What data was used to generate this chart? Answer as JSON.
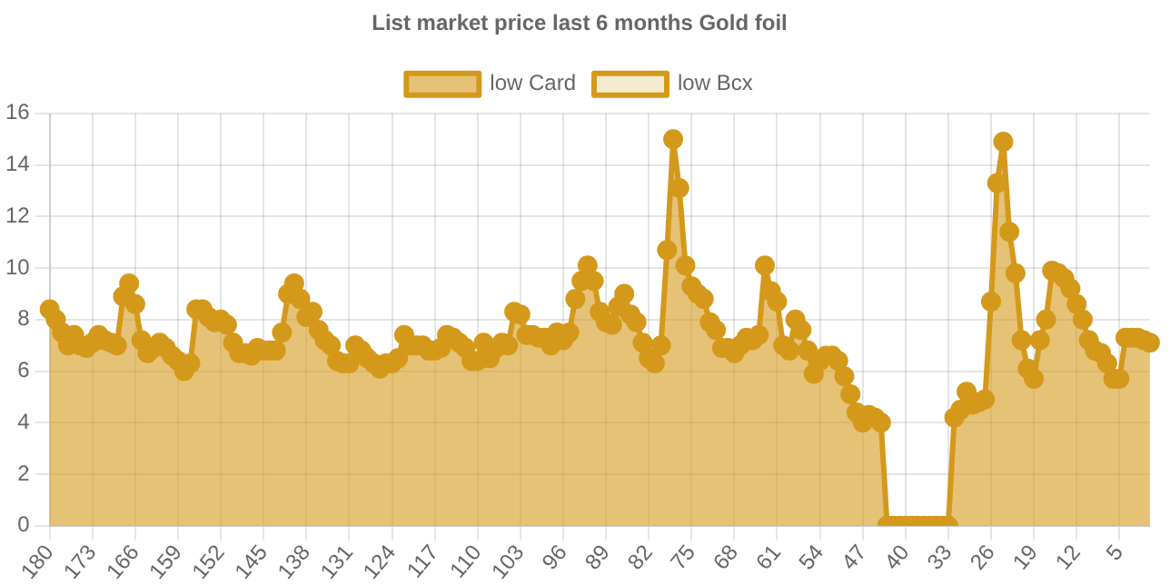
{
  "chart_data": {
    "type": "area",
    "title": "List market price last 6 months Gold foil",
    "categories": [
      "180",
      null,
      null,
      null,
      null,
      null,
      null,
      "173",
      null,
      null,
      null,
      null,
      null,
      null,
      "166",
      null,
      null,
      null,
      null,
      null,
      null,
      "159",
      null,
      null,
      null,
      null,
      null,
      null,
      "152",
      null,
      null,
      null,
      null,
      null,
      null,
      "145",
      null,
      null,
      null,
      null,
      null,
      null,
      "138",
      null,
      null,
      null,
      null,
      null,
      null,
      "131",
      null,
      null,
      null,
      null,
      null,
      null,
      "124",
      null,
      null,
      null,
      null,
      null,
      null,
      "117",
      null,
      null,
      null,
      null,
      null,
      null,
      "110",
      null,
      null,
      null,
      null,
      null,
      null,
      "103",
      null,
      null,
      null,
      null,
      null,
      null,
      "96",
      null,
      null,
      null,
      null,
      null,
      null,
      "89",
      null,
      null,
      null,
      null,
      null,
      null,
      "82",
      null,
      null,
      null,
      null,
      null,
      null,
      "75",
      null,
      null,
      null,
      null,
      null,
      null,
      "68",
      null,
      null,
      null,
      null,
      null,
      null,
      "61",
      null,
      null,
      null,
      null,
      null,
      null,
      "54",
      null,
      null,
      null,
      null,
      null,
      null,
      "47",
      null,
      null,
      null,
      null,
      null,
      null,
      "40",
      null,
      null,
      null,
      null,
      null,
      null,
      "33",
      null,
      null,
      null,
      null,
      null,
      null,
      "26",
      null,
      null,
      null,
      null,
      null,
      null,
      "19",
      null,
      null,
      null,
      null,
      null,
      null,
      "12",
      null,
      null,
      null,
      null,
      null,
      null,
      "5",
      null,
      null,
      null,
      null,
      null
    ],
    "series": [
      {
        "name": "low Card",
        "color": "#d4991a",
        "values": [
          8.4,
          8.0,
          7.5,
          7.0,
          7.4,
          7.0,
          6.9,
          7.1,
          7.4,
          7.2,
          7.1,
          7.0,
          8.9,
          9.4,
          8.6,
          7.2,
          6.7,
          6.9,
          7.1,
          6.9,
          6.6,
          6.4,
          6.0,
          6.3,
          8.4,
          8.4,
          8.1,
          7.9,
          8.0,
          7.8,
          7.1,
          6.7,
          6.7,
          6.6,
          6.9,
          6.8,
          6.8,
          6.8,
          7.5,
          9.0,
          9.4,
          8.8,
          8.1,
          8.3,
          7.6,
          7.2,
          7.0,
          6.4,
          6.3,
          6.3,
          7.0,
          6.8,
          6.5,
          6.3,
          6.1,
          6.3,
          6.3,
          6.5,
          7.4,
          7.0,
          7.0,
          7.0,
          6.8,
          6.8,
          6.9,
          7.4,
          7.3,
          7.1,
          6.9,
          6.4,
          6.4,
          7.1,
          6.5,
          6.9,
          7.1,
          7.0,
          8.3,
          8.2,
          7.4,
          7.4,
          7.3,
          7.3,
          7.0,
          7.5,
          7.2,
          7.5,
          8.8,
          9.5,
          10.1,
          9.5,
          8.3,
          7.9,
          7.8,
          8.5,
          9.0,
          8.2,
          7.9,
          7.1,
          6.5,
          6.3,
          7.0,
          10.7,
          15.0,
          13.1,
          10.1,
          9.3,
          9.0,
          8.8,
          7.9,
          7.6,
          6.9,
          6.9,
          6.7,
          7.0,
          7.3,
          7.2,
          7.4,
          10.1,
          9.1,
          8.7,
          7.0,
          6.8,
          8.0,
          7.6,
          6.8,
          5.9,
          6.4,
          6.6,
          6.6,
          6.4,
          5.8,
          5.1,
          4.4,
          4.0,
          4.3,
          4.2,
          4.0,
          0,
          0,
          0,
          0,
          0,
          0,
          0,
          0,
          0,
          0,
          0,
          4.2,
          4.5,
          5.2,
          4.7,
          4.8,
          4.9,
          8.7,
          13.3,
          14.9,
          11.4,
          9.8,
          7.2,
          6.1,
          5.7,
          7.2,
          8.0,
          9.9,
          9.8,
          9.6,
          9.2,
          8.6,
          8.0,
          7.2,
          6.8,
          6.7,
          6.3,
          5.7,
          5.7,
          7.3,
          7.3,
          7.3,
          7.2,
          7.1
        ]
      },
      {
        "name": "low Bcx",
        "color": "#d4991a",
        "values": [
          null,
          null,
          null,
          null,
          null,
          null,
          null,
          null,
          null,
          null,
          null,
          null,
          null,
          null,
          null,
          null,
          null,
          null,
          null,
          null,
          null,
          null,
          null,
          null,
          null,
          null,
          null,
          null,
          null,
          null,
          null,
          null,
          null,
          null,
          null,
          null,
          null,
          null,
          null,
          null,
          null,
          null,
          null,
          null,
          null,
          null,
          null,
          null,
          null,
          null,
          null,
          null,
          null,
          null,
          null,
          null,
          null,
          null,
          null,
          null,
          null,
          null,
          null,
          null,
          null,
          null,
          null,
          null,
          null,
          null,
          null,
          null,
          null,
          null,
          null,
          null,
          null,
          null,
          null,
          null,
          null,
          null,
          null,
          null,
          null,
          null,
          null,
          null,
          null,
          null,
          null,
          null,
          null,
          null,
          null,
          null,
          null,
          null,
          null,
          null,
          null,
          null,
          null,
          null,
          null,
          null,
          null,
          null,
          null,
          null,
          null,
          null,
          null,
          null,
          null,
          null,
          null,
          null,
          null,
          null,
          null,
          null,
          null,
          null,
          null,
          null,
          null,
          null,
          null,
          null,
          null,
          null,
          null,
          null,
          null,
          null,
          null,
          null,
          null,
          null,
          null,
          null,
          null,
          null,
          null,
          null,
          null,
          null,
          null,
          null,
          null,
          null,
          null,
          null,
          null,
          null,
          null,
          null,
          null,
          null,
          null,
          null,
          null,
          null,
          null,
          null,
          null,
          null,
          null,
          null,
          null,
          null,
          null,
          null,
          null,
          null,
          null,
          null,
          null,
          null,
          null
        ]
      }
    ],
    "ylim": [
      0,
      16
    ],
    "yticks": [
      0,
      2,
      4,
      6,
      8,
      10,
      12,
      14,
      16
    ],
    "grid": true,
    "legend": "top",
    "marker": "circle",
    "line_style": "solid"
  }
}
